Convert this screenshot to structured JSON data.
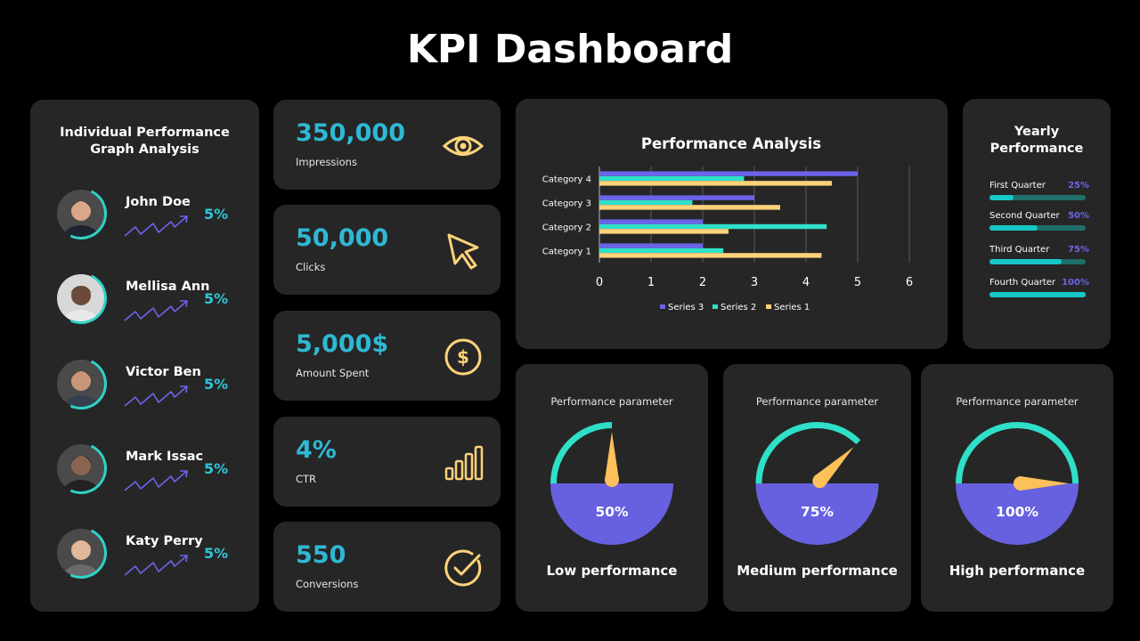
{
  "title": "KPI Dashboard",
  "people_panel": {
    "title_line1": "Individual Performance",
    "title_line2": "Graph Analysis",
    "people": [
      {
        "name": "John Doe",
        "pct": "5%"
      },
      {
        "name": "Mellisa Ann",
        "pct": "5%"
      },
      {
        "name": "Victor Ben",
        "pct": "5%"
      },
      {
        "name": "Mark Issac",
        "pct": "5%"
      },
      {
        "name": "Katy Perry",
        "pct": "5%"
      }
    ]
  },
  "metrics": [
    {
      "value": "350,000",
      "label": "Impressions",
      "icon": "eye-icon"
    },
    {
      "value": "50,000",
      "label": "Clicks",
      "icon": "cursor-icon"
    },
    {
      "value": "5,000$",
      "label": "Amount Spent",
      "icon": "dollar-icon"
    },
    {
      "value": "4%",
      "label": "CTR",
      "icon": "bar-chart-icon"
    },
    {
      "value": "550",
      "label": "Conversions",
      "icon": "check-circle-icon"
    }
  ],
  "chart_data": {
    "type": "bar",
    "orientation": "horizontal",
    "title": "Performance Analysis",
    "categories": [
      "Category 1",
      "Category 2",
      "Category 3",
      "Category 4"
    ],
    "series": [
      {
        "name": "Series 3",
        "color": "#6c63e8",
        "values": [
          2,
          2,
          3,
          5
        ]
      },
      {
        "name": "Series 2",
        "color": "#2fe0c8",
        "values": [
          2.4,
          4.4,
          1.8,
          2.8
        ]
      },
      {
        "name": "Series 1",
        "color": "#fdd37a",
        "values": [
          4.3,
          2.5,
          3.5,
          4.5
        ]
      }
    ],
    "xlim": [
      0,
      6
    ],
    "xticks": [
      "0",
      "1",
      "2",
      "3",
      "4",
      "5",
      "6"
    ],
    "legend": "bottom",
    "grid": true
  },
  "yearly": {
    "title_line1": "Yearly",
    "title_line2": "Performance",
    "quarters": [
      {
        "label": "First Quarter",
        "pct": "25%",
        "value": 0.25
      },
      {
        "label": "Second Quarter",
        "pct": "50%",
        "value": 0.5
      },
      {
        "label": "Third Quarter",
        "pct": "75%",
        "value": 0.75
      },
      {
        "label": "Fourth Quarter",
        "pct": "100%",
        "value": 1.0
      }
    ]
  },
  "gauges": [
    {
      "title": "Performance parameter",
      "value_text": "50%",
      "value": 0.5,
      "subtitle": "Low performance"
    },
    {
      "title": "Performance parameter",
      "value_text": "75%",
      "value": 0.75,
      "subtitle": "Medium performance"
    },
    {
      "title": "Performance parameter",
      "value_text": "100%",
      "value": 1.0,
      "subtitle": "High performance"
    }
  ],
  "colors": {
    "accent_teal": "#2fd3c6",
    "accent_blue": "#2fb8d4",
    "accent_purple": "#6c63e8",
    "accent_yellow": "#fdd37a",
    "card_bg": "#262626",
    "page_bg": "#000000"
  }
}
